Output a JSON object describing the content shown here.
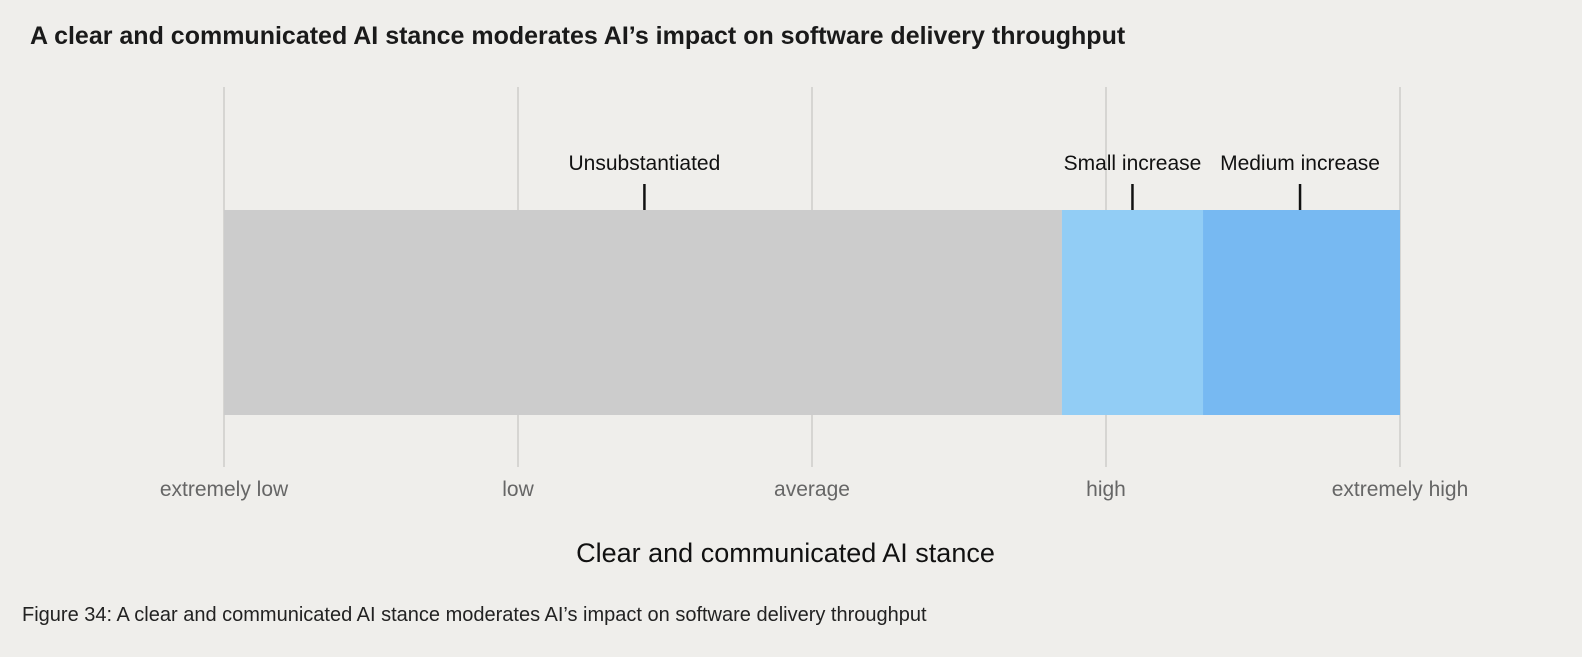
{
  "chart_data": {
    "type": "bar",
    "orientation": "horizontal-range",
    "title": "A clear and communicated AI stance moderates AI’s impact on software delivery throughput",
    "xlabel": "Clear and communicated AI stance",
    "ylabel": "",
    "categories": [
      "extremely low",
      "low",
      "average",
      "high",
      "extremely high"
    ],
    "xlim": [
      0,
      4
    ],
    "grid": true,
    "segments": [
      {
        "label": "Unsubstantiated",
        "start": 0,
        "end": 2.85,
        "marker": 1.43,
        "color": "#cccccc"
      },
      {
        "label": "Small increase",
        "start": 2.85,
        "end": 3.33,
        "marker": 3.09,
        "color": "#92cdf5"
      },
      {
        "label": "Medium increase",
        "start": 3.33,
        "end": 4.0,
        "marker": 3.66,
        "color": "#77b9f2"
      }
    ],
    "colors": {
      "grid": "#d6d5d2",
      "tick_text": "#666666",
      "marker": "#111111",
      "background": "#efeeeb"
    }
  },
  "figure_caption": "Figure 34: A clear and communicated AI stance moderates AI’s impact on software delivery throughput"
}
